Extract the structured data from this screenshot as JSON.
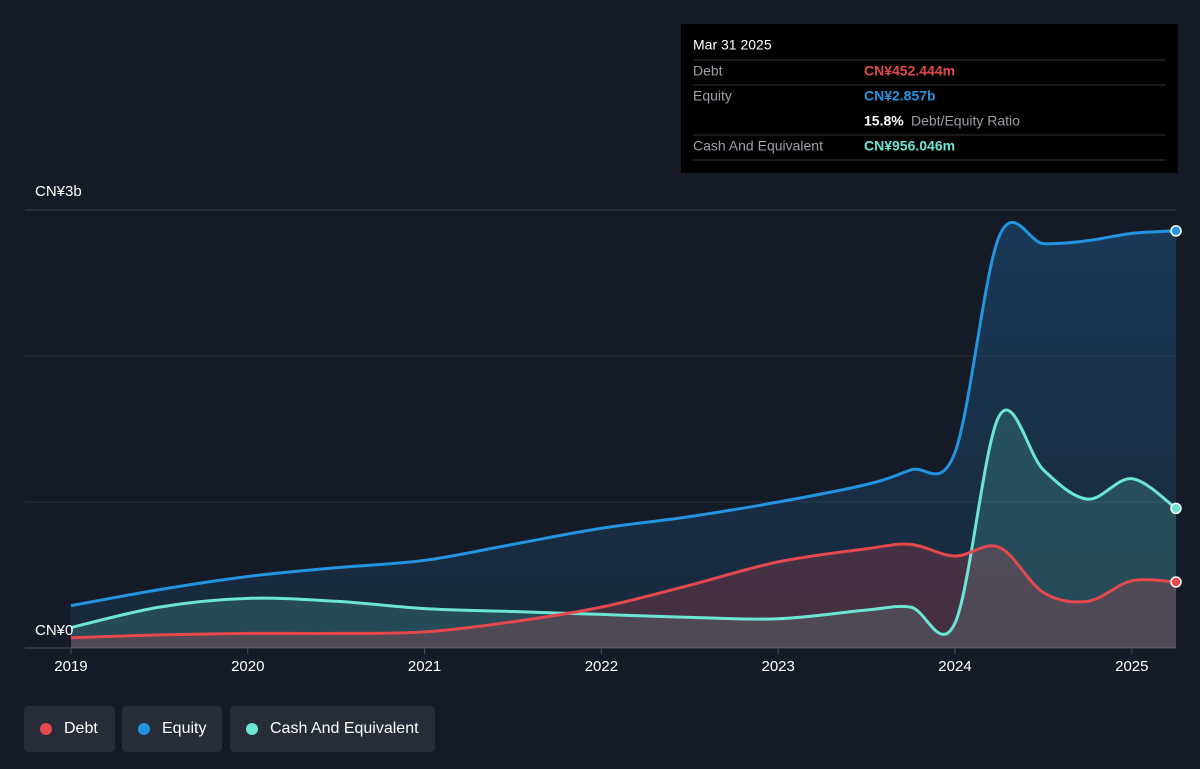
{
  "chart_data": {
    "type": "line",
    "x": [
      2019,
      2019.5,
      2020,
      2020.5,
      2021,
      2021.5,
      2022,
      2022.5,
      2023,
      2023.5,
      2023.75,
      2024,
      2024.25,
      2024.5,
      2024.75,
      2025,
      2025.25
    ],
    "xlim": [
      2018.74,
      2025.25
    ],
    "xticks": [
      2019,
      2020,
      2021,
      2022,
      2023,
      2024,
      2025
    ],
    "ylim": [
      0,
      3
    ],
    "yticks": [
      {
        "value": 0,
        "label": "CN¥0"
      },
      {
        "value": 3,
        "label": "CN¥3b"
      }
    ],
    "gridlines": [
      1,
      2
    ],
    "series": [
      {
        "name": "Debt",
        "color": "#e5484d",
        "tooltip_value": "CN¥452.444m",
        "values": [
          0.07,
          0.09,
          0.1,
          0.1,
          0.11,
          0.18,
          0.28,
          0.43,
          0.59,
          0.68,
          0.71,
          0.63,
          0.69,
          0.38,
          0.32,
          0.46,
          0.452444
        ]
      },
      {
        "name": "Equity",
        "color": "#2394df",
        "tooltip_value": "CN¥2.857b",
        "values": [
          0.29,
          0.4,
          0.49,
          0.55,
          0.6,
          0.71,
          0.82,
          0.9,
          1.0,
          1.12,
          1.22,
          1.34,
          2.82,
          2.77,
          2.79,
          2.84,
          2.857
        ]
      },
      {
        "name": "Cash And Equivalent",
        "color": "#6ce5d4",
        "tooltip_value": "CN¥956.046m",
        "values": [
          0.14,
          0.28,
          0.34,
          0.32,
          0.27,
          0.25,
          0.23,
          0.21,
          0.2,
          0.26,
          0.28,
          0.17,
          1.59,
          1.22,
          1.02,
          1.16,
          0.956046
        ]
      }
    ],
    "tooltip": {
      "date": "Mar 31 2025",
      "ratio": {
        "value": 15.8,
        "label": "15.8%"
      },
      "ratio_text": "Debt/Equity Ratio"
    }
  }
}
